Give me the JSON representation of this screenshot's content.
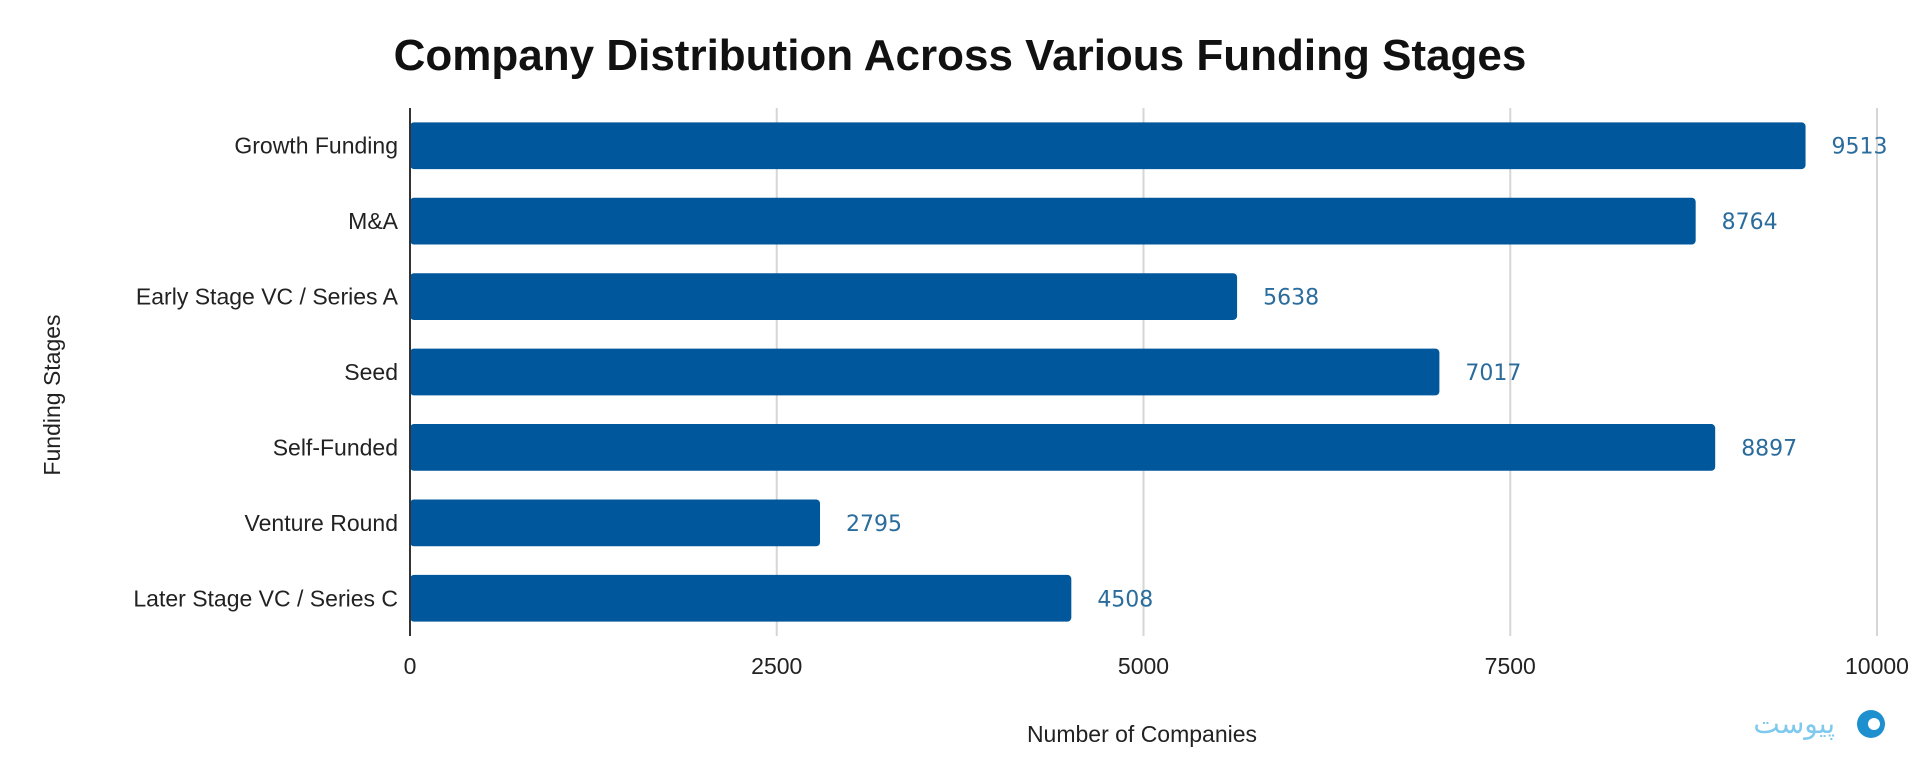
{
  "colors": {
    "bar": "#01579b",
    "value_label": "#2a6c9c"
  },
  "watermark_text": "پیوست",
  "chart_data": {
    "type": "bar",
    "orientation": "horizontal",
    "title": "Company Distribution Across Various Funding Stages",
    "xlabel": "Number of Companies",
    "ylabel": "Funding Stages",
    "xlim": [
      0,
      10000
    ],
    "xticks": [
      0,
      2500,
      5000,
      7500,
      10000
    ],
    "grid": true,
    "categories": [
      "Growth Funding",
      "M&A",
      "Early Stage VC / Series A",
      "Seed",
      "Self-Funded",
      "Venture Round",
      "Later Stage VC / Series C"
    ],
    "values": [
      9513,
      8764,
      5638,
      7017,
      8897,
      2795,
      4508
    ]
  }
}
